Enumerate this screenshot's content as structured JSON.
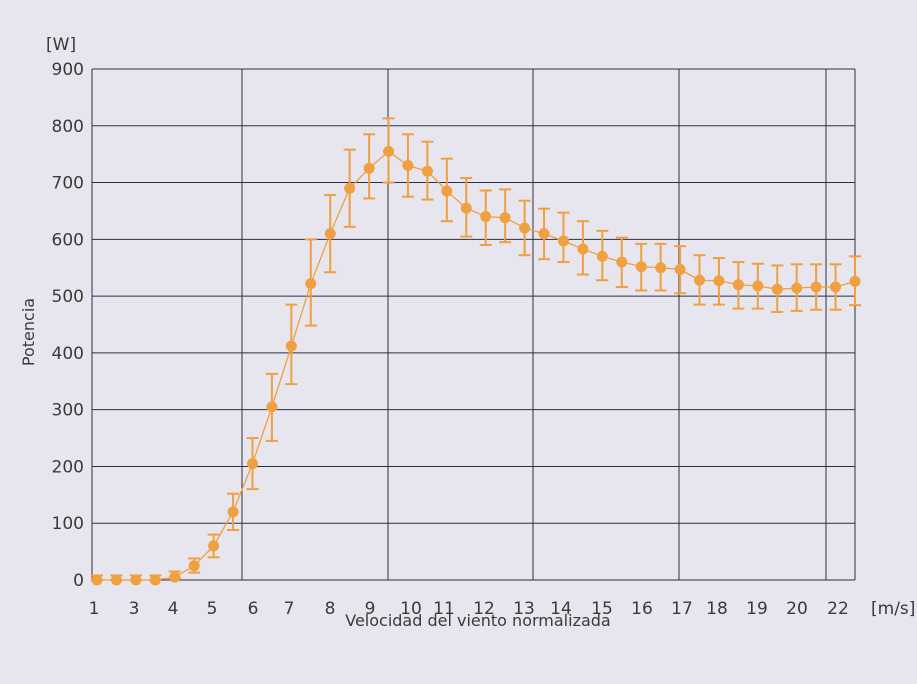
{
  "chart_data": {
    "type": "line",
    "title": "",
    "xlabel": "Velocidad del viento normalizada",
    "ylabel": "Potencia",
    "y_unit": "[W]",
    "x_unit": "[m/s]",
    "ylim": [
      0,
      900
    ],
    "yticks": [
      0,
      100,
      200,
      300,
      400,
      500,
      600,
      700,
      800,
      900
    ],
    "xtick_labels": [
      "1",
      "3",
      "4",
      "5",
      "6",
      "7",
      "8",
      "9",
      "10",
      "11",
      "12",
      "13",
      "14",
      "15",
      "16",
      "17",
      "18",
      "19",
      "20",
      "22"
    ],
    "grid": true,
    "legend": "none",
    "colors": {
      "series": "#f0a040",
      "grid": "#2b2f45",
      "background": "#e7e5ee"
    },
    "series": [
      {
        "values": [
          0,
          0,
          0,
          0,
          5,
          25,
          60,
          120,
          205,
          305,
          412,
          522,
          610,
          690,
          725,
          755,
          730,
          720,
          685,
          655,
          640,
          638,
          620,
          610,
          597,
          583,
          570,
          560,
          552,
          550,
          547,
          528,
          527,
          520,
          518,
          512,
          514,
          516,
          516,
          526
        ],
        "err_low": [
          0,
          0,
          0,
          0,
          3,
          13,
          40,
          88,
          160,
          245,
          345,
          448,
          542,
          622,
          672,
          700,
          675,
          670,
          632,
          605,
          590,
          595,
          572,
          565,
          560,
          538,
          528,
          516,
          510,
          510,
          505,
          485,
          485,
          478,
          478,
          472,
          474,
          476,
          476,
          484
        ],
        "err_high": [
          8,
          8,
          8,
          8,
          15,
          38,
          80,
          152,
          250,
          363,
          485,
          600,
          678,
          758,
          785,
          813,
          785,
          772,
          742,
          708,
          686,
          688,
          668,
          654,
          647,
          632,
          615,
          603,
          592,
          592,
          588,
          572,
          567,
          560,
          557,
          554,
          556,
          556,
          556,
          570
        ]
      }
    ]
  }
}
